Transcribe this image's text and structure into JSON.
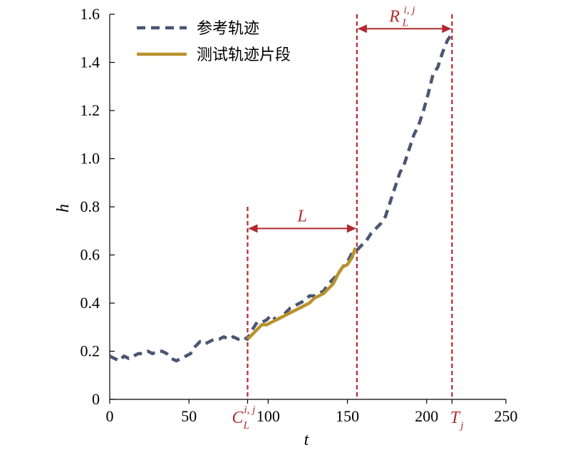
{
  "chart_data": {
    "type": "line",
    "xlabel": "t",
    "ylabel": "h",
    "xlim": [
      0,
      250
    ],
    "ylim": [
      0,
      1.6
    ],
    "x_ticks": [
      0,
      50,
      100,
      150,
      200,
      250
    ],
    "x_tick_labels": [
      "0",
      "50",
      "100",
      "150",
      "200",
      "250"
    ],
    "y_ticks": [
      0,
      0.2,
      0.4,
      0.6,
      0.8,
      1.0,
      1.2,
      1.4,
      1.6
    ],
    "y_tick_labels": [
      "0",
      "0.2",
      "0.4",
      "0.6",
      "0.8",
      "1.0",
      "1.2",
      "1.4",
      "1.6"
    ],
    "grid": false,
    "legend_position": "top-left",
    "series": [
      {
        "name": "参考轨迹",
        "color": "#4a5672",
        "style": "dashed",
        "x": [
          0,
          3,
          6,
          9,
          12,
          15,
          18,
          21,
          24,
          27,
          30,
          33,
          36,
          39,
          42,
          45,
          48,
          51,
          54,
          57,
          60,
          63,
          66,
          69,
          72,
          75,
          78,
          81,
          84,
          87,
          90,
          93,
          96,
          99,
          102,
          105,
          108,
          111,
          114,
          117,
          120,
          123,
          126,
          129,
          132,
          135,
          138,
          141,
          144,
          147,
          150,
          153,
          156,
          159,
          162,
          165,
          168,
          171,
          174,
          177,
          180,
          183,
          186,
          189,
          192,
          195,
          198,
          201,
          204,
          207,
          210,
          213,
          216
        ],
        "values": [
          0.18,
          0.17,
          0.16,
          0.18,
          0.17,
          0.18,
          0.19,
          0.19,
          0.2,
          0.19,
          0.2,
          0.2,
          0.19,
          0.17,
          0.16,
          0.17,
          0.18,
          0.19,
          0.22,
          0.24,
          0.23,
          0.24,
          0.25,
          0.25,
          0.26,
          0.25,
          0.26,
          0.25,
          0.26,
          0.25,
          0.29,
          0.32,
          0.32,
          0.33,
          0.35,
          0.33,
          0.34,
          0.36,
          0.38,
          0.39,
          0.4,
          0.41,
          0.43,
          0.43,
          0.44,
          0.45,
          0.48,
          0.5,
          0.52,
          0.55,
          0.57,
          0.61,
          0.62,
          0.64,
          0.66,
          0.69,
          0.71,
          0.73,
          0.76,
          0.82,
          0.88,
          0.94,
          0.98,
          1.04,
          1.1,
          1.14,
          1.2,
          1.27,
          1.35,
          1.38,
          1.44,
          1.49,
          1.52
        ]
      },
      {
        "name": "测试轨迹片段",
        "color": "#b8922c",
        "style": "solid",
        "x": [
          87,
          90,
          93,
          96,
          99,
          102,
          105,
          108,
          111,
          114,
          117,
          120,
          123,
          126,
          129,
          132,
          135,
          138,
          141,
          144,
          147,
          150,
          153,
          155
        ],
        "values": [
          0.25,
          0.27,
          0.29,
          0.31,
          0.31,
          0.32,
          0.33,
          0.34,
          0.35,
          0.36,
          0.37,
          0.38,
          0.39,
          0.4,
          0.42,
          0.43,
          0.44,
          0.46,
          0.48,
          0.52,
          0.55,
          0.56,
          0.59,
          0.63
        ]
      }
    ],
    "annotations": {
      "vlines": [
        {
          "x": 87,
          "y_top": 0.8,
          "color": "#b02a30"
        },
        {
          "x": 156,
          "y_top": 1.6,
          "color": "#b02a30"
        },
        {
          "x": 216,
          "y_top": 1.6,
          "color": "#b02a30"
        }
      ],
      "arrows": [
        {
          "x1": 87,
          "x2": 156,
          "y": 0.71,
          "label": "L"
        },
        {
          "x1": 156,
          "x2": 216,
          "y": 1.54,
          "label": "R",
          "label_sub": "L",
          "label_sup": "i, j"
        }
      ],
      "x_markers": [
        {
          "x": 87,
          "label": "C",
          "sub": "L",
          "sup": "i, j"
        },
        {
          "x": 216,
          "label": "T",
          "sub": "j"
        }
      ]
    }
  }
}
